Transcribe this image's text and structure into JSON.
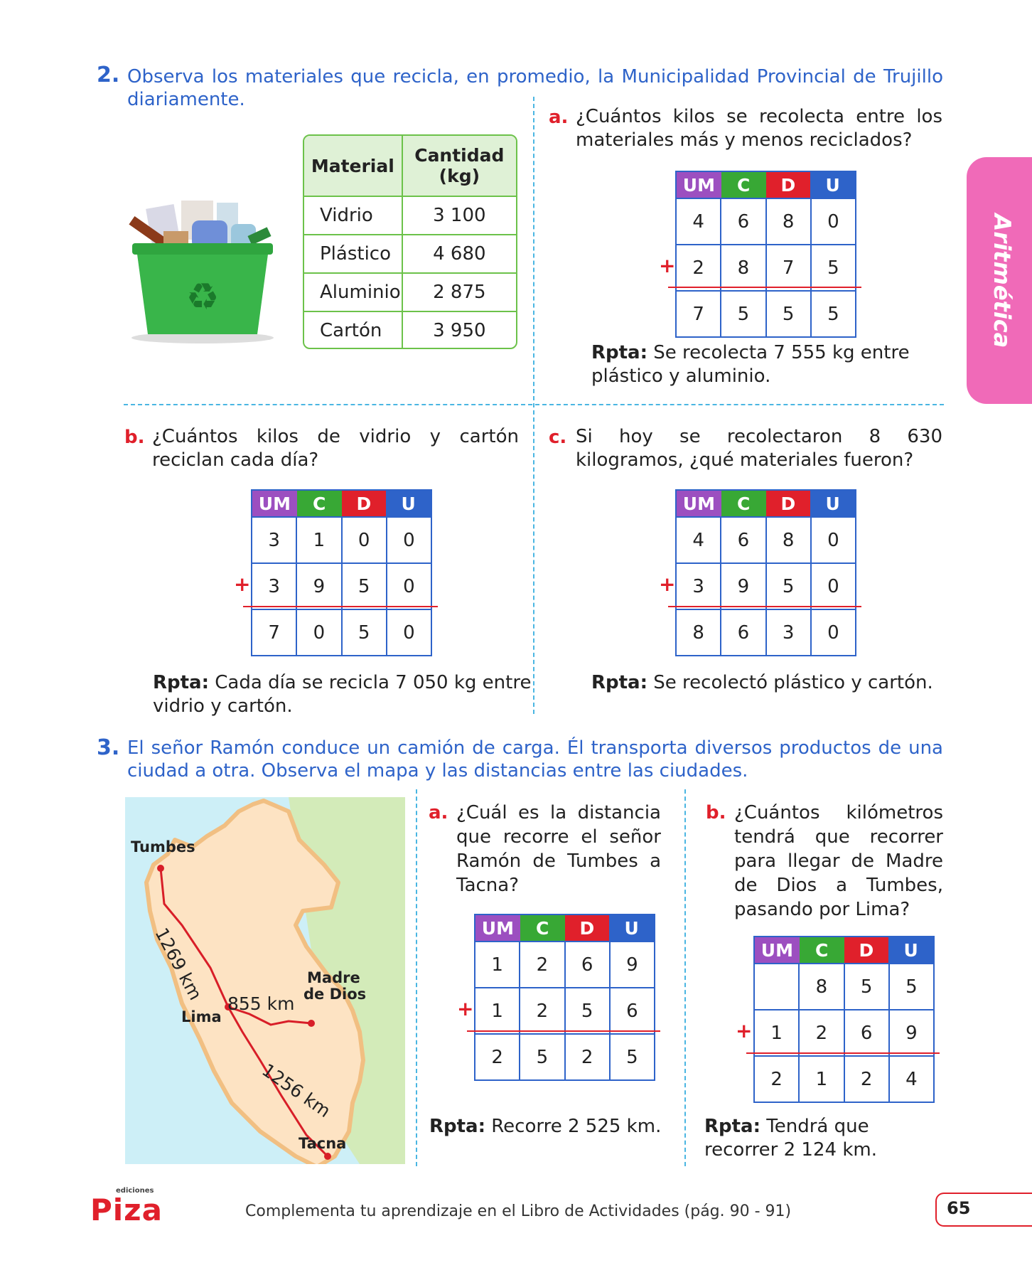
{
  "q2": {
    "number": "2.",
    "text": "Observa los materiales que recicla, en promedio, la Municipalidad Provincial de Trujillo diariamente.",
    "table": {
      "headers": [
        "Material",
        "Cantidad (kg)"
      ],
      "rows": [
        [
          "Vidrio",
          "3 100"
        ],
        [
          "Plástico",
          "4 680"
        ],
        [
          "Aluminio",
          "2 875"
        ],
        [
          "Cartón",
          "3 950"
        ]
      ]
    },
    "a": {
      "letter": "a.",
      "text": "¿Cuántos kilos se recolecta entre los materiales más y menos reciclados?",
      "rows": [
        [
          "4",
          "6",
          "8",
          "0"
        ],
        [
          "2",
          "8",
          "7",
          "5"
        ],
        [
          "7",
          "5",
          "5",
          "5"
        ]
      ],
      "rpta_label": "Rpta:",
      "rpta": "Se recolecta 7 555 kg entre plástico y aluminio."
    },
    "b": {
      "letter": "b.",
      "text": "¿Cuántos kilos de vidrio y cartón reciclan cada día?",
      "rows": [
        [
          "3",
          "1",
          "0",
          "0"
        ],
        [
          "3",
          "9",
          "5",
          "0"
        ],
        [
          "7",
          "0",
          "5",
          "0"
        ]
      ],
      "rpta_label": "Rpta:",
      "rpta": "Cada día se recicla 7 050 kg entre vidrio y cartón."
    },
    "c": {
      "letter": "c.",
      "text": "Si hoy se recolectaron 8 630 kilogramos, ¿qué materiales fueron?",
      "rows": [
        [
          "4",
          "6",
          "8",
          "0"
        ],
        [
          "3",
          "9",
          "5",
          "0"
        ],
        [
          "8",
          "6",
          "3",
          "0"
        ]
      ],
      "rpta_label": "Rpta:",
      "rpta": "Se recolectó plástico y cartón."
    }
  },
  "q3": {
    "number": "3.",
    "text": "El señor Ramón conduce un camión de carga. Él transporta diversos productos de una ciudad a otra. Observa el mapa y las distancias entre las ciudades.",
    "map": {
      "tumbes": "Tumbes",
      "lima": "Lima",
      "madre1": "Madre",
      "madre2": "de Dios",
      "tacna": "Tacna",
      "d1": "1269 km",
      "d2": "855 km",
      "d3": "1256 km"
    },
    "a": {
      "letter": "a.",
      "text": "¿Cuál es la distancia que recorre el señor Ramón de Tumbes a Tacna?",
      "rows": [
        [
          "1",
          "2",
          "6",
          "9"
        ],
        [
          "1",
          "2",
          "5",
          "6"
        ],
        [
          "2",
          "5",
          "2",
          "5"
        ]
      ],
      "rpta_label": "Rpta:",
      "rpta": "Recorre 2 525 km."
    },
    "b": {
      "letter": "b.",
      "text": "¿Cuántos kilómetros tendrá que recorrer para llegar de Madre de Dios a Tumbes, pasando por Lima?",
      "rows": [
        [
          "",
          "8",
          "5",
          "5"
        ],
        [
          "1",
          "2",
          "6",
          "9"
        ],
        [
          "2",
          "1",
          "2",
          "4"
        ]
      ],
      "rpta_label": "Rpta:",
      "rpta": "Tendrá que recorrer 2 124 km."
    }
  },
  "grid_headers": [
    "UM",
    "C",
    "D",
    "U"
  ],
  "plus": "+",
  "side_tab": "Aritmética",
  "footer": "Complementa tu aprendizaje en el Libro de Actividades (pág. 90 - 91)",
  "page_number": "65",
  "logo": "Piza",
  "logo_small": "ediciones"
}
